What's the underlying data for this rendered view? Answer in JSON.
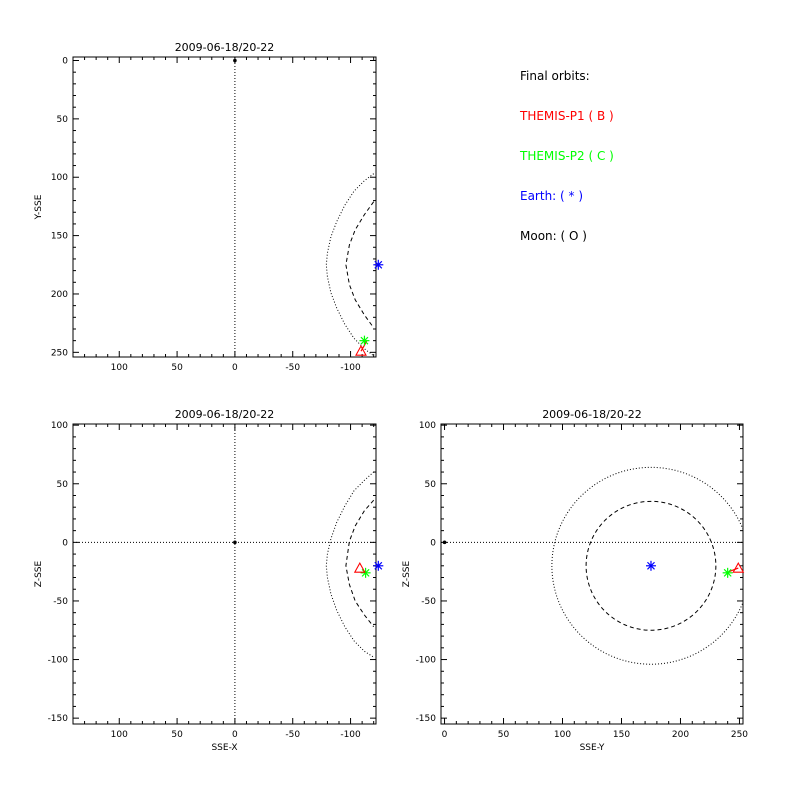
{
  "chart_data": [
    {
      "type": "scatter",
      "id": "xy",
      "title": "2009-06-18/20-22",
      "xlabel": "",
      "ylabel": "Y-SSE",
      "xlim": [
        140,
        -122
      ],
      "ylim": [
        254,
        -3
      ],
      "xticks": [
        100,
        50,
        0,
        -50,
        -100
      ],
      "yticks": [
        0,
        50,
        100,
        150,
        200,
        250
      ],
      "zero_lines": {
        "x": 0,
        "y": null
      },
      "origin_dot": [
        0,
        0
      ],
      "curves": [
        {
          "name": "",
          "style": "dotted",
          "points": [
            [
              -120,
              97
            ],
            [
              -112,
              103
            ],
            [
              -103,
              112
            ],
            [
              -95,
              124
            ],
            [
              -88,
              138
            ],
            [
              -83,
              151
            ],
            [
              -80,
              165
            ],
            [
              -79,
              175
            ],
            [
              -80,
              185
            ],
            [
              -83,
              199
            ],
            [
              -88,
              212
            ],
            [
              -95,
              226
            ],
            [
              -103,
              238
            ],
            [
              -112,
              247
            ],
            [
              -120,
              253
            ]
          ]
        },
        {
          "name": "",
          "style": "dashed",
          "points": [
            [
              -120,
              121
            ],
            [
              -112,
              132
            ],
            [
              -104,
              145
            ],
            [
              -99,
              158
            ],
            [
              -96,
              175
            ],
            [
              -99,
              192
            ],
            [
              -104,
              205
            ],
            [
              -112,
              218
            ],
            [
              -120,
              229
            ]
          ]
        }
      ],
      "markers": [
        {
          "name": "earth",
          "symbol": "asterisk",
          "color": "#0000ff",
          "x": -124,
          "y": 175
        },
        {
          "name": "themis-p2",
          "symbol": "asterisk",
          "color": "#00ff00",
          "x": -112,
          "y": 240
        },
        {
          "name": "themis-p1",
          "symbol": "triangle",
          "color": "#ff0000",
          "x": -109,
          "y": 249
        }
      ],
      "traces": [
        {
          "color": "#ff0000",
          "points": [
            [
              -109,
              249
            ],
            [
              -112,
              244
            ],
            [
              -114,
              240
            ]
          ]
        }
      ]
    },
    {
      "type": "scatter",
      "id": "xz",
      "title": "2009-06-18/20-22",
      "xlabel": "SSE-X",
      "ylabel": "Z-SSE",
      "xlim": [
        140,
        -122
      ],
      "ylim": [
        -155,
        101
      ],
      "xticks": [
        100,
        50,
        0,
        -50,
        -100
      ],
      "yticks": [
        100,
        50,
        0,
        -50,
        -100,
        -150
      ],
      "zero_lines": {
        "x": 0,
        "y": 0
      },
      "origin_dot": [
        0,
        0
      ],
      "curves": [
        {
          "name": "",
          "style": "dotted",
          "points": [
            [
              -120,
              60
            ],
            [
              -112,
              53
            ],
            [
              -103,
              44
            ],
            [
              -95,
              31
            ],
            [
              -88,
              17
            ],
            [
              -83,
              3
            ],
            [
              -80,
              -10
            ],
            [
              -79,
              -20
            ],
            [
              -80,
              -30
            ],
            [
              -83,
              -44
            ],
            [
              -88,
              -58
            ],
            [
              -95,
              -72
            ],
            [
              -103,
              -84
            ],
            [
              -112,
              -93
            ],
            [
              -120,
              -98
            ]
          ]
        },
        {
          "name": "",
          "style": "dashed",
          "points": [
            [
              -120,
              36
            ],
            [
              -112,
              27
            ],
            [
              -104,
              14
            ],
            [
              -99,
              1
            ],
            [
              -96,
              -20
            ],
            [
              -99,
              -36
            ],
            [
              -104,
              -50
            ],
            [
              -112,
              -62
            ],
            [
              -120,
              -72
            ]
          ]
        }
      ],
      "markers": [
        {
          "name": "earth",
          "symbol": "asterisk",
          "color": "#0000ff",
          "x": -124,
          "y": -20
        },
        {
          "name": "themis-p2",
          "symbol": "asterisk",
          "color": "#00ff00",
          "x": -113,
          "y": -26
        },
        {
          "name": "themis-p1",
          "symbol": "triangle",
          "color": "#ff0000",
          "x": -108,
          "y": -22
        }
      ],
      "traces": []
    },
    {
      "type": "scatter",
      "id": "yz",
      "title": "2009-06-18/20-22",
      "xlabel": "SSE-Y",
      "ylabel": "Z-SSE",
      "xlim": [
        -3,
        253
      ],
      "ylim": [
        -155,
        101
      ],
      "xticks": [
        0,
        50,
        100,
        150,
        200,
        250
      ],
      "yticks": [
        100,
        50,
        0,
        -50,
        -100,
        -150
      ],
      "zero_lines": {
        "x": null,
        "y": 0
      },
      "origin_dot": [
        0,
        0
      ],
      "circles": [
        {
          "style": "dotted",
          "cx": 175,
          "cy": -20,
          "r": 84
        },
        {
          "style": "dashed",
          "cx": 175,
          "cy": -20,
          "r": 55
        }
      ],
      "markers": [
        {
          "name": "earth",
          "symbol": "asterisk",
          "color": "#0000ff",
          "x": 175,
          "y": -20
        },
        {
          "name": "themis-p2",
          "symbol": "asterisk",
          "color": "#00ff00",
          "x": 240,
          "y": -26
        },
        {
          "name": "themis-p1",
          "symbol": "triangle",
          "color": "#ff0000",
          "x": 249,
          "y": -22
        }
      ],
      "traces": [
        {
          "color": "#ff0000",
          "points": [
            [
              241,
              -25
            ],
            [
              249,
              -22
            ]
          ]
        }
      ]
    }
  ],
  "legend": {
    "heading": "Final orbits:",
    "items": [
      {
        "label": "THEMIS-P1 ( B )",
        "color": "#ff0000"
      },
      {
        "label": "THEMIS-P2 ( C )",
        "color": "#00ff00"
      },
      {
        "label": "Earth: ( * )",
        "color": "#0000ff"
      },
      {
        "label": "Moon: ( O )",
        "color": "#000000"
      }
    ]
  }
}
